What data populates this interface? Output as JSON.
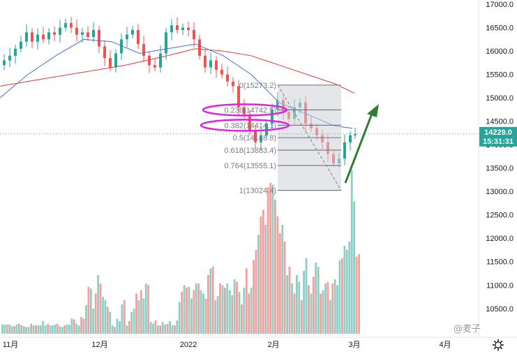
{
  "chart_data": {
    "type": "candlestick",
    "x_ticks": [
      "11月",
      "12月",
      "2022",
      "2月",
      "3月",
      "4月"
    ],
    "y_ticks": [
      "17000.0",
      "16500.0",
      "16000.0",
      "15500.0",
      "15000.0",
      "14500.0",
      "14000.0",
      "13500.0",
      "13000.0",
      "12500.0",
      "12000.0",
      "11500.0",
      "11000.0",
      "10500.0"
    ],
    "ylim": [
      10000,
      17300
    ],
    "last_price": {
      "value": "14229.0",
      "time": "15:31:31",
      "price": 14229,
      "color": "#26a69a"
    },
    "fibonacci": {
      "high": 15273.2,
      "low": 13024.4,
      "levels": [
        {
          "ratio": 0,
          "price": 15273.2,
          "label": "0(15273.2)"
        },
        {
          "ratio": 0.236,
          "price": 14742.5,
          "label": "0.236(14742.5)"
        },
        {
          "ratio": 0.382,
          "price": 14414.1,
          "label": "0.382(14414.1)"
        },
        {
          "ratio": 0.5,
          "price": 14148.8,
          "label": "0.5(14148.8)"
        },
        {
          "ratio": 0.618,
          "price": 13883.4,
          "label": "0.618(13883.4)"
        },
        {
          "ratio": 0.764,
          "price": 13555.1,
          "label": "0.764(13555.1)"
        },
        {
          "ratio": 1,
          "price": 13024.4,
          "label": "1(13024.4)"
        }
      ]
    },
    "colors": {
      "up": "#26a69a",
      "down": "#ef5350",
      "vol_up": "#8fcdc5",
      "vol_down": "#f2a09b",
      "ma_fast": "#3d6fd8",
      "ma_slow": "#e53935",
      "highlight": "#e020e0",
      "arrow": "#2e7d32"
    },
    "grid": false
  },
  "watermark": "@麦子",
  "settings_icon": "gear-icon"
}
